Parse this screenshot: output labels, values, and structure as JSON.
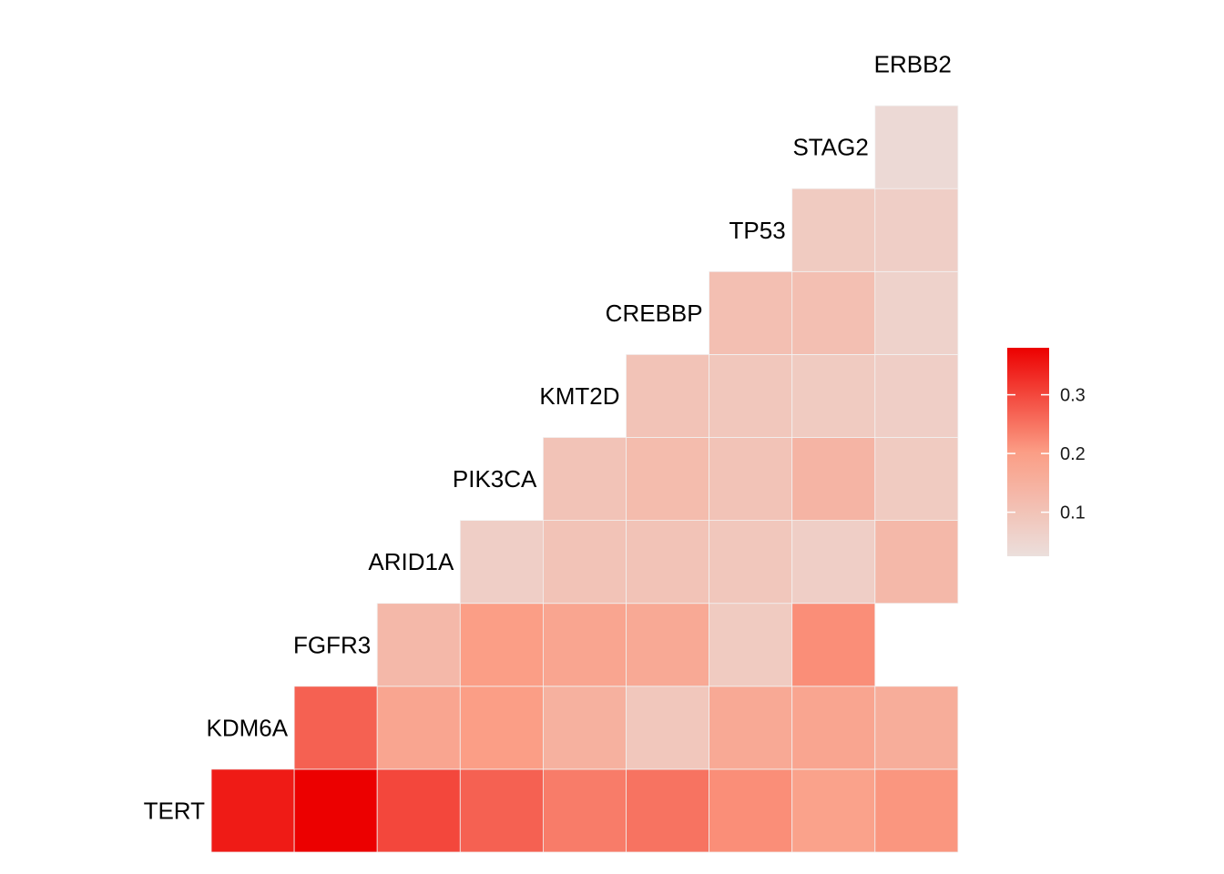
{
  "chart_data": {
    "type": "heatmap",
    "shape": "lower-triangle",
    "genes": [
      "TERT",
      "KDM6A",
      "FGFR3",
      "ARID1A",
      "PIK3CA",
      "KMT2D",
      "CREBBP",
      "TP53",
      "STAG2",
      "ERBB2"
    ],
    "rows": [
      {
        "gene": "TERT",
        "values": [
          0.35,
          0.38,
          0.3,
          0.27,
          0.24,
          0.25,
          0.22,
          0.19,
          0.21
        ]
      },
      {
        "gene": "KDM6A",
        "values": [
          0.27,
          0.18,
          0.2,
          0.15,
          0.09,
          0.17,
          0.18,
          0.16
        ]
      },
      {
        "gene": "FGFR3",
        "values": [
          0.13,
          0.2,
          0.18,
          0.17,
          0.08,
          0.22,
          null
        ]
      },
      {
        "gene": "ARID1A",
        "values": [
          0.07,
          0.1,
          0.1,
          0.09,
          0.07,
          0.13
        ]
      },
      {
        "gene": "PIK3CA",
        "values": [
          0.1,
          0.12,
          0.1,
          0.14,
          0.08
        ]
      },
      {
        "gene": "KMT2D",
        "values": [
          0.1,
          0.09,
          0.08,
          0.07
        ]
      },
      {
        "gene": "CREBBP",
        "values": [
          0.11,
          0.11,
          0.06
        ]
      },
      {
        "gene": "TP53",
        "values": [
          0.08,
          0.07
        ]
      },
      {
        "gene": "STAG2",
        "values": [
          0.04
        ]
      }
    ],
    "legend": {
      "ticks": [
        0.1,
        0.2,
        0.3
      ],
      "min": 0.025,
      "max": 0.38,
      "placement": "right"
    },
    "colors": {
      "low": "#ebdfdc",
      "mid": "#fb9d85",
      "high": "#ec0000",
      "grid": "#f2f2f2"
    }
  }
}
